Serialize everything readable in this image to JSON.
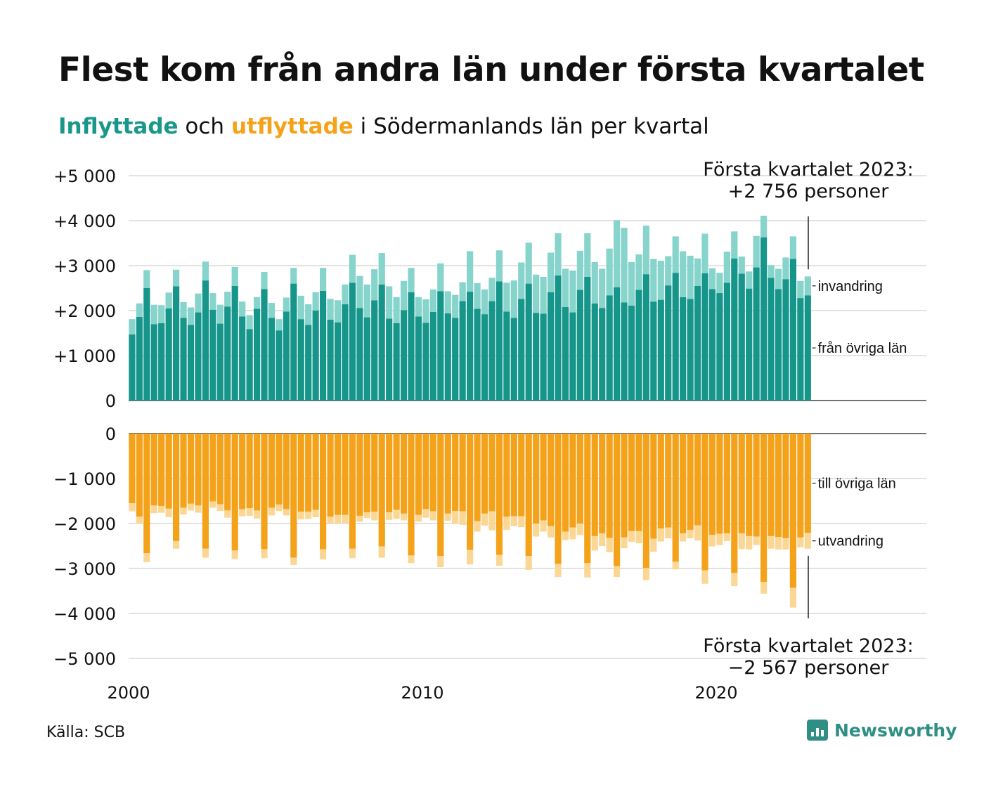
{
  "title": "Flest kom från andra län under första kvartalet",
  "subtitle": {
    "in_word": "Inflyttade",
    "and_word": " och ",
    "out_word": "utflyttade",
    "rest": " i Södermanlands län per kvartal"
  },
  "source": "Källa: SCB",
  "brand": "Newsworthy",
  "colors": {
    "in_dark": "#16958a",
    "in_light": "#86d4cb",
    "out_dark": "#f5a21b",
    "out_light": "#fbd796"
  },
  "chart_data": {
    "type": "bar",
    "x_start": "2000 Q1",
    "x_ticks": [
      "2000",
      "2010",
      "2020"
    ],
    "top_panel": {
      "y_ticks": [
        "+5 000",
        "+4 000",
        "+3 000",
        "+2 000",
        "+1 000",
        "0"
      ],
      "ylim": [
        0,
        5000
      ],
      "series": [
        {
          "name": "från övriga län",
          "values": [
            1470,
            1860,
            2500,
            1700,
            1720,
            2050,
            2540,
            1840,
            1680,
            1960,
            2670,
            2020,
            1710,
            2090,
            2550,
            1870,
            1590,
            2040,
            2480,
            1840,
            1560,
            1980,
            2600,
            1810,
            1680,
            2000,
            2440,
            1800,
            1740,
            2140,
            2620,
            2060,
            1850,
            2230,
            2580,
            1820,
            1720,
            2010,
            2410,
            1870,
            1730,
            1970,
            2430,
            1940,
            1840,
            2210,
            2420,
            2040,
            1920,
            2210,
            2650,
            1980,
            1840,
            2260,
            2600,
            1950,
            1930,
            2410,
            2780,
            2080,
            1960,
            2460,
            2750,
            2160,
            2060,
            2340,
            2520,
            2180,
            2110,
            2460,
            2810,
            2200,
            2240,
            2560,
            2840,
            2300,
            2260,
            2550,
            2830,
            2480,
            2390,
            2620,
            3160,
            2820,
            2490,
            2960,
            3630,
            2730,
            2480,
            2700,
            3150,
            2280,
            2340
          ]
        },
        {
          "name": "invandring",
          "values": [
            340,
            300,
            400,
            430,
            400,
            350,
            370,
            350,
            390,
            420,
            420,
            370,
            420,
            330,
            420,
            330,
            310,
            260,
            380,
            330,
            250,
            310,
            350,
            520,
            460,
            410,
            510,
            460,
            490,
            440,
            620,
            710,
            730,
            690,
            700,
            720,
            580,
            650,
            540,
            430,
            520,
            500,
            620,
            490,
            510,
            420,
            900,
            570,
            550,
            520,
            690,
            640,
            830,
            810,
            910,
            850,
            820,
            880,
            940,
            850,
            930,
            870,
            970,
            920,
            870,
            1040,
            1490,
            1660,
            970,
            790,
            1080,
            950,
            870,
            650,
            810,
            1020,
            960,
            610,
            880,
            460,
            450,
            690,
            600,
            380,
            380,
            700,
            480,
            280,
            450,
            480,
            500,
            380,
            420
          ]
        }
      ],
      "annotation": [
        "Första kvartalet 2023:",
        "+2 756 personer"
      ]
    },
    "bottom_panel": {
      "y_ticks": [
        "0",
        "−1 000",
        "−2 000",
        "−3 000",
        "−4 000",
        "−5 000"
      ],
      "ylim": [
        -5000,
        0
      ],
      "series": [
        {
          "name": "till övriga län",
          "values": [
            1550,
            1850,
            2660,
            1600,
            1610,
            1670,
            2390,
            1650,
            1560,
            1600,
            2560,
            1510,
            1570,
            1710,
            2600,
            1680,
            1660,
            1710,
            2570,
            1650,
            1580,
            1680,
            2760,
            1740,
            1740,
            1700,
            2570,
            1850,
            1810,
            1810,
            2560,
            1830,
            1750,
            1740,
            2510,
            1750,
            1700,
            1780,
            2710,
            1810,
            1680,
            1730,
            2720,
            1780,
            1720,
            1730,
            2590,
            1950,
            1780,
            1730,
            2700,
            1850,
            1840,
            1840,
            2720,
            2000,
            1930,
            2060,
            2900,
            2180,
            2090,
            2000,
            2880,
            2280,
            2220,
            2320,
            2950,
            2310,
            2170,
            2170,
            2990,
            2340,
            2110,
            2090,
            2850,
            2220,
            2140,
            2040,
            3040,
            2250,
            2230,
            2220,
            3100,
            2220,
            2280,
            2290,
            3300,
            2280,
            2300,
            2330,
            3430,
            2310,
            2210
          ]
        },
        {
          "name": "utvandring",
          "values": [
            180,
            150,
            200,
            170,
            150,
            190,
            170,
            150,
            150,
            160,
            200,
            140,
            150,
            160,
            190,
            160,
            170,
            180,
            200,
            170,
            140,
            140,
            160,
            170,
            160,
            160,
            230,
            150,
            190,
            180,
            210,
            130,
            130,
            190,
            250,
            170,
            200,
            150,
            170,
            150,
            190,
            200,
            250,
            160,
            280,
            300,
            320,
            230,
            270,
            420,
            240,
            290,
            220,
            240,
            310,
            290,
            250,
            250,
            290,
            190,
            260,
            260,
            320,
            320,
            280,
            320,
            240,
            240,
            240,
            270,
            270,
            290,
            290,
            240,
            170,
            180,
            190,
            340,
            300,
            260,
            250,
            170,
            290,
            350,
            300,
            190,
            260,
            280,
            280,
            250,
            440,
            220,
            350
          ]
        }
      ],
      "annotation": [
        "Första kvartalet 2023:",
        "−2 567 personer"
      ]
    }
  }
}
